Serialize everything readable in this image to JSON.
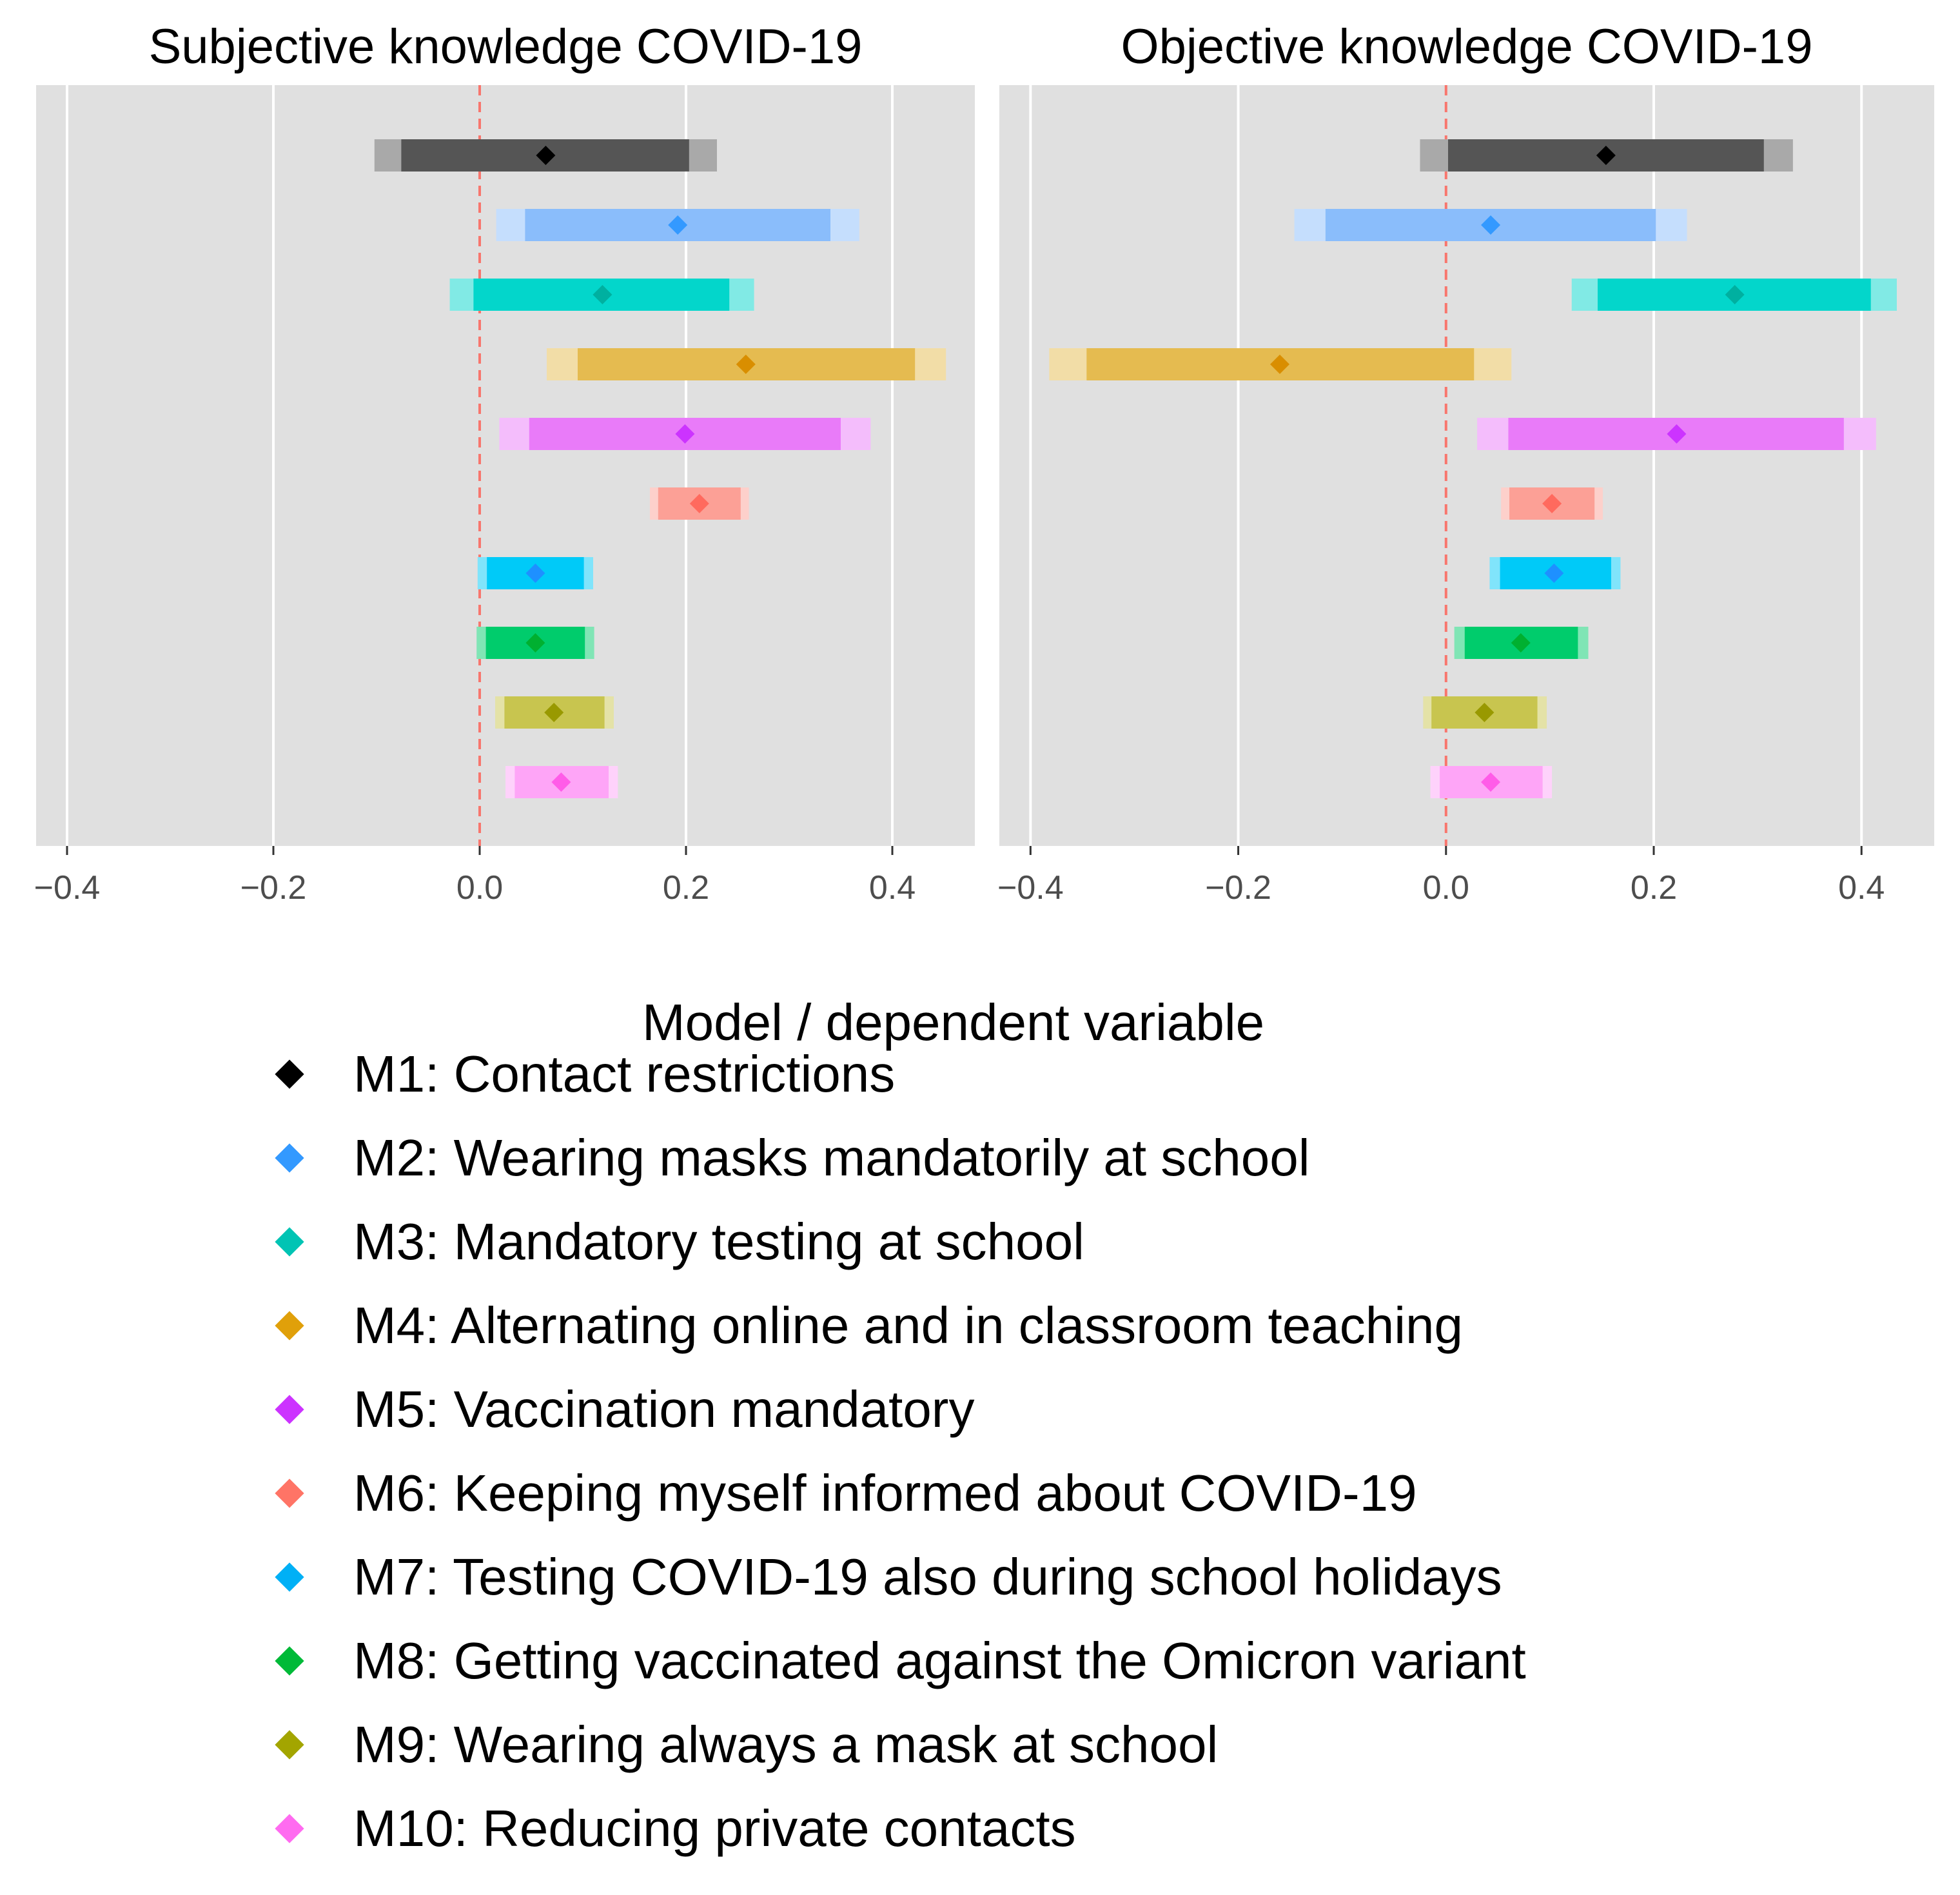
{
  "chart_data": {
    "type": "forest",
    "panels": [
      {
        "title": "Subjective knowledge COVID-19",
        "xlim": [
          -0.43,
          0.48
        ],
        "xticks": [
          -0.4,
          -0.2,
          0.0,
          0.2,
          0.4
        ],
        "xtick_labels": [
          "−0.4",
          "−0.2",
          "0.0",
          "0.2",
          "0.4"
        ],
        "reference_line": 0.0,
        "rows": [
          {
            "model": "M1",
            "estimate": 0.064,
            "ci90": [
              -0.076,
              0.203
            ],
            "ci95": [
              -0.102,
              0.23
            ]
          },
          {
            "model": "M2",
            "estimate": 0.192,
            "ci90": [
              0.044,
              0.34
            ],
            "ci95": [
              0.016,
              0.368
            ]
          },
          {
            "model": "M3",
            "estimate": 0.119,
            "ci90": [
              -0.006,
              0.242
            ],
            "ci95": [
              -0.029,
              0.266
            ]
          },
          {
            "model": "M4",
            "estimate": 0.258,
            "ci90": [
              0.095,
              0.422
            ],
            "ci95": [
              0.065,
              0.452
            ]
          },
          {
            "model": "M5",
            "estimate": 0.199,
            "ci90": [
              0.048,
              0.35
            ],
            "ci95": [
              0.019,
              0.379
            ]
          },
          {
            "model": "M6",
            "estimate": 0.213,
            "ci90": [
              0.173,
              0.253
            ],
            "ci95": [
              0.165,
              0.261
            ]
          },
          {
            "model": "M7",
            "estimate": 0.054,
            "ci90": [
              0.007,
              0.101
            ],
            "ci95": [
              -0.002,
              0.11
            ]
          },
          {
            "model": "M8",
            "estimate": 0.054,
            "ci90": [
              0.006,
              0.102
            ],
            "ci95": [
              -0.003,
              0.111
            ]
          },
          {
            "model": "M9",
            "estimate": 0.072,
            "ci90": [
              0.024,
              0.121
            ],
            "ci95": [
              0.015,
              0.13
            ]
          },
          {
            "model": "M10",
            "estimate": 0.079,
            "ci90": [
              0.034,
              0.125
            ],
            "ci95": [
              0.025,
              0.134
            ]
          }
        ]
      },
      {
        "title": "Objective knowledge COVID-19",
        "xlim": [
          -0.43,
          0.47
        ],
        "xticks": [
          -0.4,
          -0.2,
          0.0,
          0.2,
          0.4
        ],
        "xtick_labels": [
          "−0.4",
          "−0.2",
          "0.0",
          "0.2",
          "0.4"
        ],
        "reference_line": 0.0,
        "rows": [
          {
            "model": "M1",
            "estimate": 0.154,
            "ci90": [
              0.002,
              0.306
            ],
            "ci95": [
              -0.025,
              0.334
            ]
          },
          {
            "model": "M2",
            "estimate": 0.043,
            "ci90": [
              -0.116,
              0.202
            ],
            "ci95": [
              -0.146,
              0.232
            ]
          },
          {
            "model": "M3",
            "estimate": 0.278,
            "ci90": [
              0.146,
              0.409
            ],
            "ci95": [
              0.121,
              0.434
            ]
          },
          {
            "model": "M4",
            "estimate": -0.16,
            "ci90": [
              -0.346,
              0.027
            ],
            "ci95": [
              -0.382,
              0.063
            ]
          },
          {
            "model": "M5",
            "estimate": 0.222,
            "ci90": [
              0.06,
              0.383
            ],
            "ci95": [
              0.03,
              0.414
            ]
          },
          {
            "model": "M6",
            "estimate": 0.102,
            "ci90": [
              0.061,
              0.143
            ],
            "ci95": [
              0.053,
              0.151
            ]
          },
          {
            "model": "M7",
            "estimate": 0.104,
            "ci90": [
              0.052,
              0.159
            ],
            "ci95": [
              0.042,
              0.168
            ]
          },
          {
            "model": "M8",
            "estimate": 0.072,
            "ci90": [
              0.018,
              0.127
            ],
            "ci95": [
              0.008,
              0.137
            ]
          },
          {
            "model": "M9",
            "estimate": 0.037,
            "ci90": [
              -0.014,
              0.088
            ],
            "ci95": [
              -0.022,
              0.097
            ]
          },
          {
            "model": "M10",
            "estimate": 0.043,
            "ci90": [
              -0.006,
              0.093
            ],
            "ci95": [
              -0.015,
              0.102
            ]
          }
        ]
      }
    ],
    "legend": {
      "title": "Model / dependent variable",
      "position": "bottom",
      "items": [
        {
          "model": "M1",
          "label": "M1: Contact restrictions",
          "color": "#000000"
        },
        {
          "model": "M2",
          "label": "M2: Wearing masks mandatorily at school",
          "color": "#3399FF"
        },
        {
          "model": "M3",
          "label": "M3: Mandatory testing at school",
          "color": "#00C4B4"
        },
        {
          "model": "M4",
          "label": "M4: Alternating online and in classroom teaching",
          "color": "#E0A00A"
        },
        {
          "model": "M5",
          "label": "M5: Vaccination mandatory",
          "color": "#CC33FF"
        },
        {
          "model": "M6",
          "label": "M6: Keeping myself informed about COVID-19",
          "color": "#FF7466"
        },
        {
          "model": "M7",
          "label": "M7: Testing COVID-19 also during school holidays",
          "color": "#00B0F6"
        },
        {
          "model": "M8",
          "label": "M8: Getting vaccinated against the Omicron variant",
          "color": "#00BA38"
        },
        {
          "model": "M9",
          "label": "M9: Wearing always a mask at school",
          "color": "#A3A500"
        },
        {
          "model": "M10",
          "label": "M10: Reducing private contacts",
          "color": "#FF6BF0"
        }
      ]
    }
  },
  "style": {
    "panel_bg": "#E0E0E0",
    "grid_color": "#FFFFFF",
    "reference_line_color": "#F8766D",
    "tick_color": "#4D4D4D",
    "bar_colors_90": [
      "#555555",
      "#8ABDFB",
      "#03D6CB",
      "#E5BB50",
      "#E97BF9",
      "#FCA096",
      "#00CAF8",
      "#00CC6C",
      "#C8C54F",
      "#FEA5F7"
    ],
    "bar_colors_95": [
      "#A9A9A9",
      "#C5DEFD",
      "#81EAE5",
      "#F2DDA7",
      "#F4BDFC",
      "#FDD0CB",
      "#80E4FB",
      "#80E5B5",
      "#E4E2A7",
      "#FED2FB"
    ],
    "point_colors": [
      "#000000",
      "#3399FF",
      "#00B0A0",
      "#D98E00",
      "#CC33FF",
      "#FF6A5E",
      "#1E90FF",
      "#00B030",
      "#999900",
      "#FF5CE8"
    ]
  }
}
